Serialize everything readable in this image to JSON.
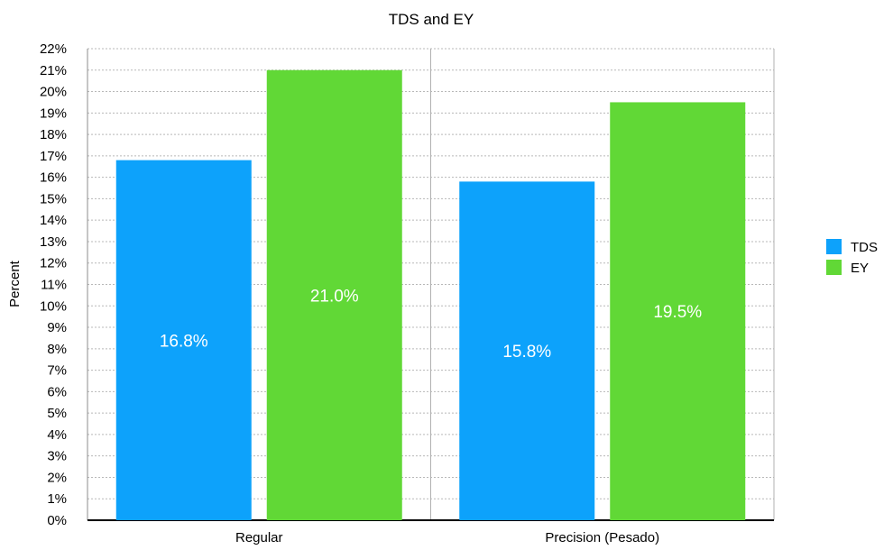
{
  "chart_data": {
    "type": "bar",
    "title": "TDS and EY",
    "xlabel": "",
    "ylabel": "Percent",
    "categories": [
      "Regular",
      "Precision (Pesado)"
    ],
    "series": [
      {
        "name": "TDS",
        "color": "#0da2fb",
        "values": [
          16.8,
          15.8
        ],
        "data_labels": [
          "16.8%",
          "15.8%"
        ]
      },
      {
        "name": "EY",
        "color": "#61d836",
        "values": [
          21.0,
          19.5
        ],
        "data_labels": [
          "21.0%",
          "19.5%"
        ]
      }
    ],
    "ylim": [
      0,
      22
    ],
    "y_ticks": [
      "0%",
      "1%",
      "2%",
      "3%",
      "4%",
      "5%",
      "6%",
      "7%",
      "8%",
      "9%",
      "10%",
      "11%",
      "12%",
      "13%",
      "14%",
      "15%",
      "16%",
      "17%",
      "18%",
      "19%",
      "20%",
      "21%",
      "22%"
    ],
    "grid": true,
    "legend_position": "right"
  }
}
